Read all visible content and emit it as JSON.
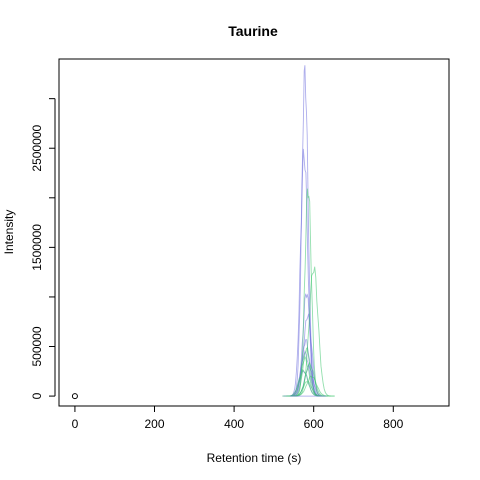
{
  "chart_data": {
    "type": "line",
    "title": "Taurine",
    "xlabel": "Retention time (s)",
    "ylabel": "Intensity",
    "xlim": [
      -40,
      940
    ],
    "ylim": [
      -100000,
      3400000
    ],
    "x_ticks": [
      0,
      200,
      400,
      600,
      800
    ],
    "y_ticks": [
      0,
      500000,
      1000000,
      1500000,
      2000000,
      2500000,
      3000000
    ],
    "y_tick_labels": [
      "0",
      "500000",
      "",
      "1500000",
      "",
      "2500000",
      ""
    ],
    "grid": false,
    "colors": {
      "series_a": "#6b6bdc",
      "series_b": "#39c46a"
    },
    "marker_point": {
      "x": 0,
      "y": 0
    },
    "series": [
      {
        "color": "#6b6bdc",
        "apex_x": 578,
        "apex_y": 3250000,
        "width": 16
      },
      {
        "color": "#6b6bdc",
        "apex_x": 576,
        "apex_y": 2450000,
        "width": 18
      },
      {
        "color": "#6b6bdc",
        "apex_x": 582,
        "apex_y": 1050000,
        "width": 18
      },
      {
        "color": "#6b6bdc",
        "apex_x": 585,
        "apex_y": 820000,
        "width": 20
      },
      {
        "color": "#6b6bdc",
        "apex_x": 580,
        "apex_y": 560000,
        "width": 20
      },
      {
        "color": "#6b6bdc",
        "apex_x": 578,
        "apex_y": 430000,
        "width": 22
      },
      {
        "color": "#6b6bdc",
        "apex_x": 588,
        "apex_y": 300000,
        "width": 20
      },
      {
        "color": "#6b6bdc",
        "apex_x": 575,
        "apex_y": 250000,
        "width": 22
      },
      {
        "color": "#39c46a",
        "apex_x": 586,
        "apex_y": 2100000,
        "width": 16
      },
      {
        "color": "#39c46a",
        "apex_x": 600,
        "apex_y": 1300000,
        "width": 22
      },
      {
        "color": "#39c46a",
        "apex_x": 582,
        "apex_y": 480000,
        "width": 18
      },
      {
        "color": "#39c46a",
        "apex_x": 578,
        "apex_y": 380000,
        "width": 20
      },
      {
        "color": "#39c46a",
        "apex_x": 590,
        "apex_y": 320000,
        "width": 22
      },
      {
        "color": "#39c46a",
        "apex_x": 574,
        "apex_y": 260000,
        "width": 22
      },
      {
        "color": "#39c46a",
        "apex_x": 595,
        "apex_y": 200000,
        "width": 24
      },
      {
        "color": "#39c46a",
        "apex_x": 584,
        "apex_y": 150000,
        "width": 20
      }
    ]
  }
}
